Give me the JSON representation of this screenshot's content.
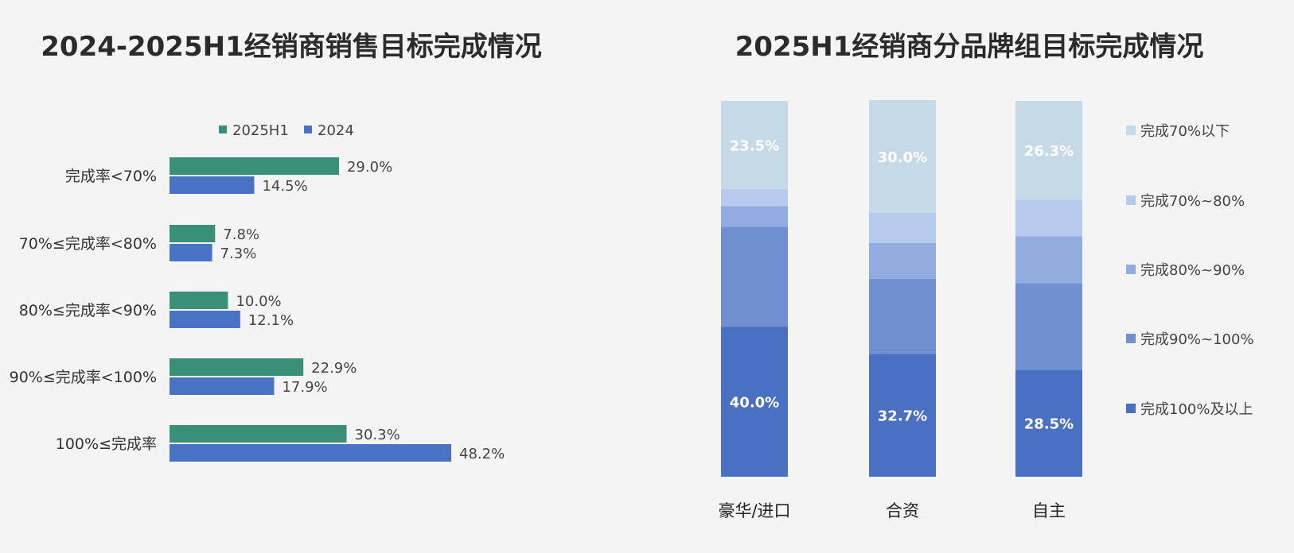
{
  "chart_data": [
    {
      "type": "bar",
      "orientation": "horizontal",
      "title": "2024-2025H1经销商销售目标完成情况",
      "categories": [
        "完成率<70%",
        "70%≤完成率<80%",
        "80%≤完成率<90%",
        "90%≤完成率<100%",
        "100%≤完成率"
      ],
      "series": [
        {
          "name": "2025H1",
          "color": "#3a8f78",
          "values": [
            29.0,
            7.8,
            10.0,
            22.9,
            30.3
          ],
          "labels": [
            "29.0%",
            "7.8%",
            "10.0%",
            "22.9%",
            "30.3%"
          ]
        },
        {
          "name": "2024",
          "color": "#4a72c4",
          "values": [
            14.5,
            7.3,
            12.1,
            17.9,
            48.2
          ],
          "labels": [
            "14.5%",
            "7.3%",
            "12.1%",
            "17.9%",
            "48.2%"
          ]
        }
      ],
      "unit": "%",
      "legend": "top",
      "grid": false
    },
    {
      "type": "bar",
      "stacked": true,
      "title": "2025H1经销商分品牌组目标完成情况",
      "categories": [
        "豪华/进口",
        "合资",
        "自主"
      ],
      "series": [
        {
          "name": "完成100%及以上",
          "color": "#4a70c2",
          "values": [
            40.0,
            32.7,
            28.5
          ],
          "labels": [
            "40.0%",
            "32.7%",
            "28.5%"
          ]
        },
        {
          "name": "完成90%~100%",
          "color": "#6f8fd1",
          "values": [
            26.5,
            20.0,
            23.0
          ],
          "labels": [
            "",
            "",
            ""
          ]
        },
        {
          "name": "完成80%~90%",
          "color": "#93acdf",
          "values": [
            5.5,
            9.5,
            12.5
          ],
          "labels": [
            "",
            "",
            ""
          ]
        },
        {
          "name": "完成70%~80%",
          "color": "#b5caed",
          "values": [
            4.5,
            8.0,
            9.7
          ],
          "labels": [
            "",
            "",
            ""
          ]
        },
        {
          "name": "完成70%以下",
          "color": "#c5d9e6",
          "values": [
            23.5,
            30.0,
            26.3
          ],
          "labels": [
            "23.5%",
            "30.0%",
            "26.3%"
          ]
        }
      ],
      "ylim": [
        0,
        100
      ],
      "unit": "%",
      "legend": "right",
      "grid": false
    }
  ]
}
